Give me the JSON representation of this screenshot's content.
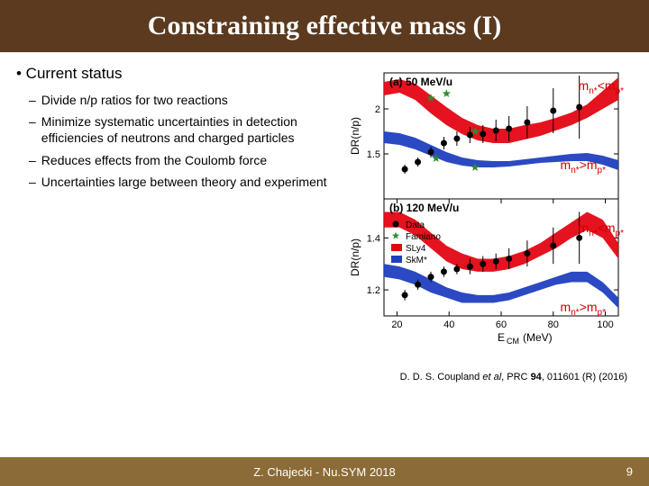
{
  "title": "Constraining effective mass (I)",
  "bullet_main": "• Current status",
  "sub_bullets": [
    "Divide n/p ratios for two reactions",
    "Minimize systematic uncertainties in detection efficiencies of neutrons and charged particles",
    "Reduces effects from the Coulomb force",
    "Uncertainties large between theory and experiment"
  ],
  "citation_prefix": "D. D. S. Coupland ",
  "citation_etal": "et al",
  "citation_mid": ", PRC ",
  "citation_vol": "94",
  "citation_suffix": ", 011601 (R) (2016)",
  "footer": "Z. Chajecki - Nu.SYM 2018",
  "page": "9",
  "colors": {
    "title_bg": "#5b3a1f",
    "footer_bg": "#8b6b37",
    "band_red": "#e30613",
    "band_blue": "#1f3fbf",
    "data_black": "#000000",
    "star_green": "#2e8b2e",
    "ann_red": "#cc0000",
    "axis": "#000000"
  },
  "chart_a": {
    "label": "(a) 50 MeV/u",
    "ylabel": "DR(n/p)",
    "ylim": [
      1.0,
      2.4
    ],
    "yticks": [
      1.5,
      2
    ],
    "xlim": [
      15,
      105
    ],
    "red_band_top": [
      2.3,
      2.33,
      2.28,
      2.15,
      2.02,
      1.9,
      1.82,
      1.78,
      1.78,
      1.82,
      1.85,
      1.9,
      1.96,
      2.05,
      2.2,
      2.35
    ],
    "red_band_bot": [
      2.15,
      2.18,
      2.1,
      1.95,
      1.82,
      1.72,
      1.65,
      1.62,
      1.62,
      1.66,
      1.7,
      1.76,
      1.82,
      1.9,
      2.0,
      2.1
    ],
    "blue_band_top": [
      1.75,
      1.73,
      1.68,
      1.6,
      1.52,
      1.46,
      1.43,
      1.42,
      1.42,
      1.44,
      1.46,
      1.48,
      1.5,
      1.51,
      1.48,
      1.43
    ],
    "blue_band_bot": [
      1.62,
      1.6,
      1.55,
      1.48,
      1.41,
      1.37,
      1.35,
      1.35,
      1.36,
      1.38,
      1.4,
      1.41,
      1.42,
      1.42,
      1.38,
      1.32
    ],
    "data_x": [
      23,
      28,
      33,
      38,
      43,
      48,
      53,
      58,
      63,
      70,
      80,
      90
    ],
    "data_y": [
      1.33,
      1.41,
      1.52,
      1.62,
      1.67,
      1.71,
      1.72,
      1.76,
      1.78,
      1.85,
      1.98,
      2.02
    ],
    "data_err": [
      0.05,
      0.05,
      0.06,
      0.07,
      0.08,
      0.09,
      0.1,
      0.12,
      0.14,
      0.18,
      0.25,
      0.35
    ],
    "stars_x": [
      33,
      35,
      39,
      50,
      50
    ],
    "stars_y": [
      2.12,
      1.45,
      2.17,
      1.75,
      1.35
    ]
  },
  "chart_b": {
    "label": "(b) 120 MeV/u",
    "ylabel": "DR(n/p)",
    "xlabel": "E_CM (MeV)",
    "ylim": [
      1.1,
      1.55
    ],
    "yticks": [
      1.2,
      1.4
    ],
    "xlim": [
      15,
      105
    ],
    "xticks": [
      20,
      40,
      60,
      80,
      100
    ],
    "legend": [
      {
        "label": "Data",
        "marker": "circle",
        "color": "#000000"
      },
      {
        "label": "Famiano",
        "marker": "star",
        "color": "#2e8b2e"
      },
      {
        "label": "SLy4",
        "marker": "box",
        "color": "#e30613"
      },
      {
        "label": "SkM*",
        "marker": "box",
        "color": "#1f3fbf"
      }
    ],
    "red_band_top": [
      1.5,
      1.5,
      1.47,
      1.42,
      1.37,
      1.34,
      1.32,
      1.32,
      1.33,
      1.35,
      1.38,
      1.42,
      1.46,
      1.5,
      1.47,
      1.38
    ],
    "red_band_bot": [
      1.44,
      1.44,
      1.41,
      1.36,
      1.31,
      1.28,
      1.27,
      1.27,
      1.28,
      1.3,
      1.33,
      1.36,
      1.4,
      1.43,
      1.4,
      1.32
    ],
    "blue_band_top": [
      1.3,
      1.29,
      1.27,
      1.24,
      1.21,
      1.19,
      1.18,
      1.18,
      1.19,
      1.21,
      1.23,
      1.25,
      1.27,
      1.27,
      1.23,
      1.17
    ],
    "blue_band_bot": [
      1.25,
      1.24,
      1.22,
      1.19,
      1.17,
      1.15,
      1.15,
      1.15,
      1.16,
      1.18,
      1.2,
      1.22,
      1.23,
      1.23,
      1.19,
      1.13
    ],
    "data_x": [
      23,
      28,
      33,
      38,
      43,
      48,
      53,
      58,
      63,
      70,
      80,
      90
    ],
    "data_y": [
      1.18,
      1.22,
      1.25,
      1.27,
      1.28,
      1.29,
      1.3,
      1.31,
      1.32,
      1.34,
      1.37,
      1.4
    ],
    "data_err": [
      0.02,
      0.02,
      0.02,
      0.02,
      0.02,
      0.03,
      0.03,
      0.03,
      0.04,
      0.05,
      0.07,
      0.1
    ]
  },
  "annotations": {
    "a_top": "m_n*<m_p*",
    "a_bot": "m_n*>m_p*",
    "b_top": "m_n*<m_p*",
    "b_bot": "m_n*>m_p*"
  }
}
